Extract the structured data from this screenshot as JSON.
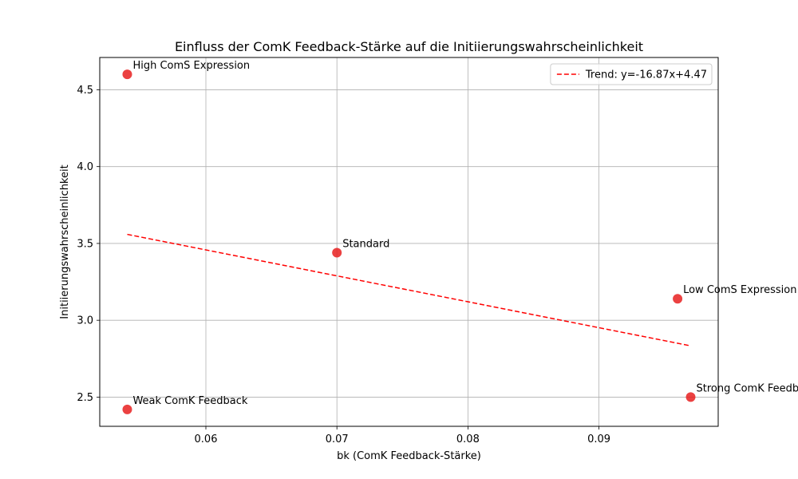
{
  "chart_data": {
    "type": "scatter",
    "title": "Einfluss der ComK Feedback-Stärke auf die Initiierungswahrscheinlichkeit",
    "xlabel": "bk (ComK Feedback-Stärke)",
    "ylabel": "Initiierungswahrscheinlichkeit",
    "xlim": [
      0.0519,
      0.0991
    ],
    "ylim": [
      2.31,
      4.71
    ],
    "xticks": [
      0.06,
      0.07,
      0.08,
      0.09
    ],
    "xtick_labels": [
      "0.06",
      "0.07",
      "0.08",
      "0.09"
    ],
    "yticks": [
      2.5,
      3.0,
      3.5,
      4.0,
      4.5
    ],
    "ytick_labels": [
      "2.5",
      "3.0",
      "3.5",
      "4.0",
      "4.5"
    ],
    "grid": true,
    "legend_position": "top-right",
    "points": [
      {
        "label": "High ComS Expression",
        "x": 0.054,
        "y": 4.6
      },
      {
        "label": "Standard",
        "x": 0.07,
        "y": 3.44
      },
      {
        "label": "Low ComS Expression",
        "x": 0.096,
        "y": 3.14
      },
      {
        "label": "Strong ComK Feedback",
        "x": 0.097,
        "y": 2.5
      },
      {
        "label": "Weak ComK Feedback",
        "x": 0.054,
        "y": 2.42
      }
    ],
    "point_color": "#e82020",
    "trend": {
      "label": "Trend: y=-16.87x+4.47",
      "slope": -16.87,
      "intercept": 4.47,
      "x_range": [
        0.054,
        0.097
      ],
      "color": "#ff0000"
    }
  }
}
